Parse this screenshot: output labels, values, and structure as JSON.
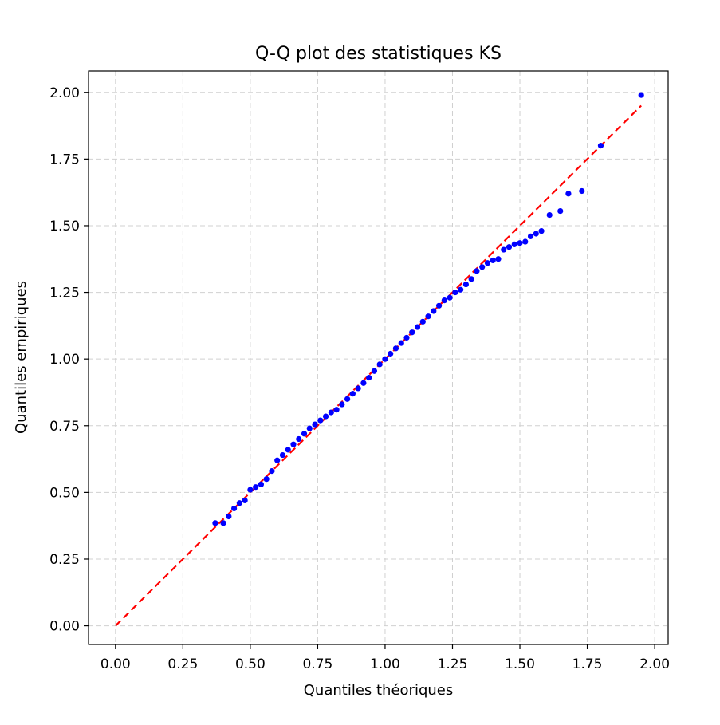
{
  "chart_data": {
    "type": "scatter",
    "title": "Q-Q plot des statistiques KS",
    "xlabel": "Quantiles théoriques",
    "ylabel": "Quantiles empiriques",
    "xlim": [
      -0.1,
      2.05
    ],
    "ylim": [
      -0.07,
      2.08
    ],
    "xticks": [
      "0.00",
      "0.25",
      "0.50",
      "0.75",
      "1.00",
      "1.25",
      "1.50",
      "1.75",
      "2.00"
    ],
    "yticks": [
      "0.00",
      "0.25",
      "0.50",
      "0.75",
      "1.00",
      "1.25",
      "1.50",
      "1.75",
      "2.00"
    ],
    "grid": true,
    "colors": {
      "points": "#0000ff",
      "reference_line": "#ff0000",
      "grid": "#d0d0d0"
    },
    "reference_line": {
      "style": "dashed",
      "x": [
        0.0,
        1.95
      ],
      "y": [
        0.0,
        1.95
      ]
    },
    "series": [
      {
        "x": [
          0.37,
          0.4,
          0.42,
          0.44,
          0.46,
          0.48,
          0.5,
          0.52,
          0.54,
          0.56,
          0.58,
          0.6,
          0.62,
          0.64,
          0.66,
          0.68,
          0.7,
          0.72,
          0.74,
          0.76,
          0.78,
          0.8,
          0.82,
          0.84,
          0.86,
          0.88,
          0.9,
          0.92,
          0.94,
          0.96,
          0.98,
          1.0,
          1.02,
          1.04,
          1.06,
          1.08,
          1.1,
          1.12,
          1.14,
          1.16,
          1.18,
          1.2,
          1.22,
          1.24,
          1.26,
          1.28,
          1.3,
          1.32,
          1.34,
          1.36,
          1.38,
          1.4,
          1.42,
          1.44,
          1.46,
          1.48,
          1.5,
          1.52,
          1.54,
          1.56,
          1.58,
          1.61,
          1.65,
          1.68,
          1.73,
          1.8,
          1.95
        ],
        "y": [
          0.385,
          0.385,
          0.41,
          0.44,
          0.46,
          0.47,
          0.51,
          0.52,
          0.53,
          0.55,
          0.58,
          0.62,
          0.64,
          0.66,
          0.68,
          0.7,
          0.72,
          0.74,
          0.755,
          0.77,
          0.785,
          0.8,
          0.81,
          0.83,
          0.85,
          0.87,
          0.89,
          0.91,
          0.93,
          0.955,
          0.98,
          1.0,
          1.02,
          1.04,
          1.06,
          1.08,
          1.1,
          1.12,
          1.14,
          1.16,
          1.18,
          1.2,
          1.22,
          1.23,
          1.25,
          1.26,
          1.28,
          1.3,
          1.33,
          1.345,
          1.36,
          1.37,
          1.375,
          1.41,
          1.42,
          1.43,
          1.435,
          1.44,
          1.46,
          1.47,
          1.48,
          1.54,
          1.555,
          1.62,
          1.63,
          1.8,
          1.99
        ]
      }
    ]
  }
}
